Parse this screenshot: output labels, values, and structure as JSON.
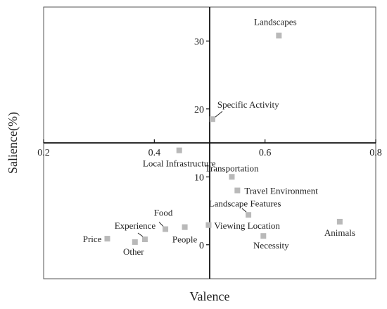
{
  "chart_data": {
    "type": "scatter",
    "title": "",
    "xlabel": "Valence",
    "ylabel": "Salience(%)",
    "xlim": [
      0.2,
      0.8
    ],
    "ylim": [
      -5,
      35
    ],
    "axes_cross": {
      "x": 0.5,
      "y": 15
    },
    "x_ticks": [
      {
        "value": 0.2,
        "label": "0.2"
      },
      {
        "value": 0.4,
        "label": "0.4"
      },
      {
        "value": 0.6,
        "label": "0.6"
      },
      {
        "value": 0.8,
        "label": "0.8"
      }
    ],
    "y_ticks": [
      {
        "value": 0,
        "label": "0"
      },
      {
        "value": 10,
        "label": "10"
      },
      {
        "value": 20,
        "label": "20"
      },
      {
        "value": 30,
        "label": "30"
      }
    ],
    "grid": false,
    "legend": "none",
    "marker_color": "#b9b9b9",
    "points": [
      {
        "label": "Landscapes",
        "x": 0.625,
        "y": 30.8
      },
      {
        "label": "Specific Activity",
        "x": 0.505,
        "y": 18.5
      },
      {
        "label": "Local Infrastructure",
        "x": 0.445,
        "y": 13.9
      },
      {
        "label": "Transportation",
        "x": 0.54,
        "y": 10.0
      },
      {
        "label": "Travel Environment",
        "x": 0.55,
        "y": 8.0
      },
      {
        "label": "Landscape Features",
        "x": 0.57,
        "y": 4.4
      },
      {
        "label": "Viewing Location",
        "x": 0.498,
        "y": 2.9
      },
      {
        "label": "Animals",
        "x": 0.735,
        "y": 3.4
      },
      {
        "label": "Necessity",
        "x": 0.597,
        "y": 1.3
      },
      {
        "label": "Food",
        "x": 0.42,
        "y": 2.3
      },
      {
        "label": "People",
        "x": 0.455,
        "y": 2.6
      },
      {
        "label": "Experience",
        "x": 0.383,
        "y": 0.8
      },
      {
        "label": "Other",
        "x": 0.365,
        "y": 0.4
      },
      {
        "label": "Price",
        "x": 0.315,
        "y": 0.9
      }
    ]
  }
}
